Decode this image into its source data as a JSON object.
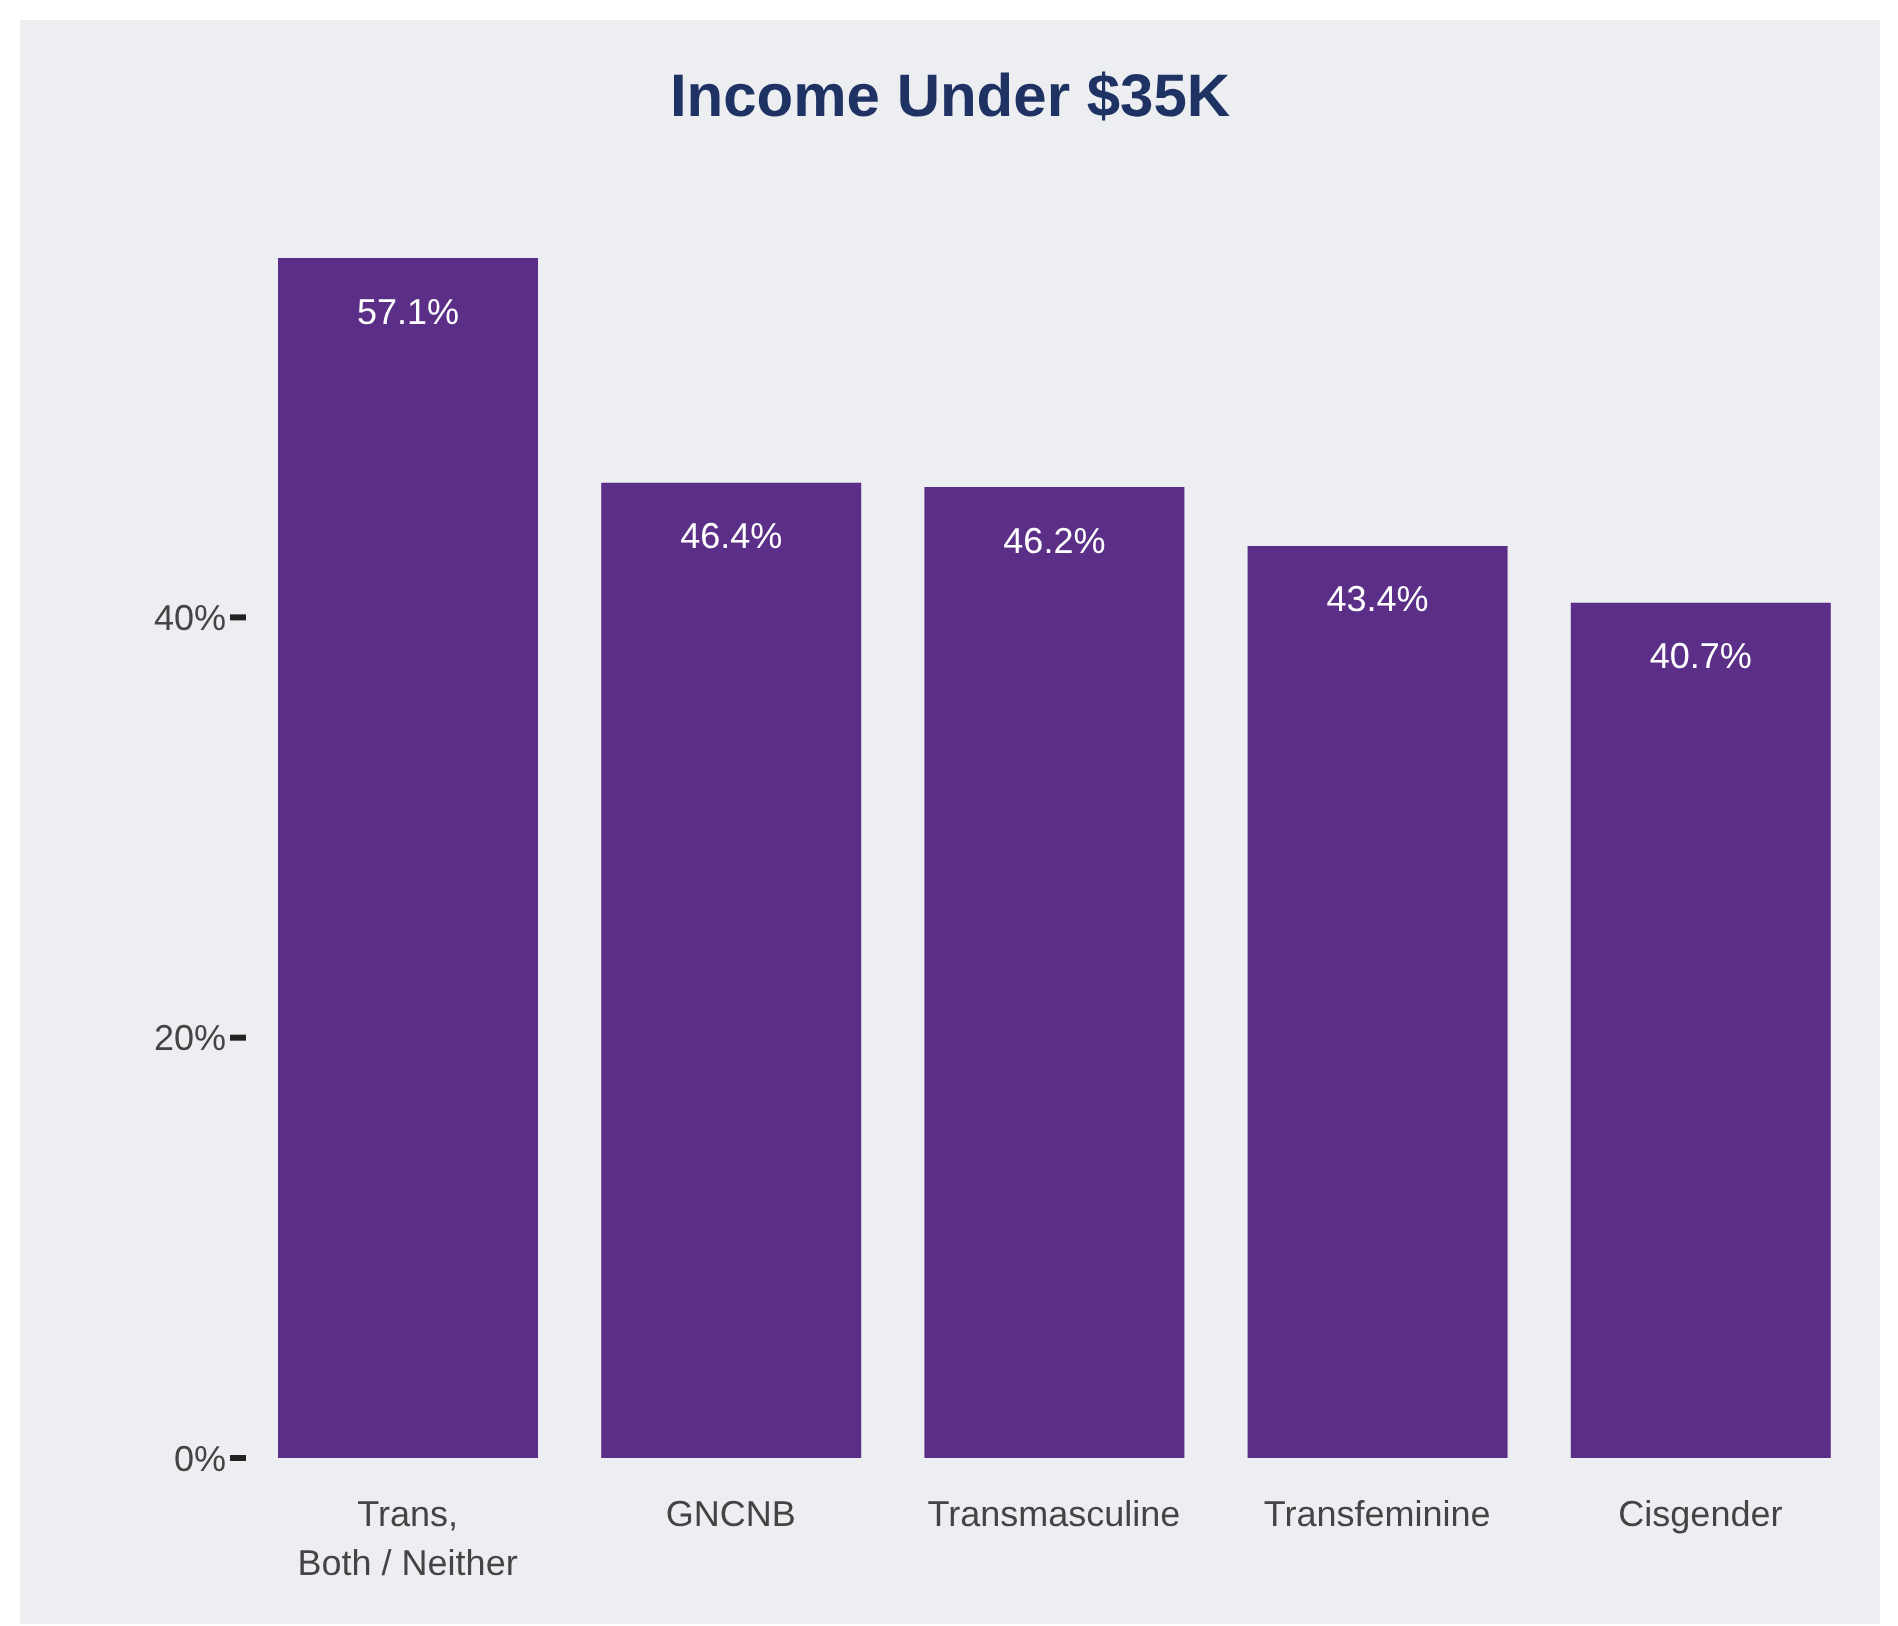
{
  "chart_data": {
    "type": "bar",
    "title": "Income Under $35K",
    "categories": [
      "Trans,\nBoth / Neither",
      "GNCNB",
      "Transmasculine",
      "Transfeminine",
      "Cisgender"
    ],
    "values": [
      57.1,
      46.4,
      46.2,
      43.4,
      40.7
    ],
    "color": "#5b2e87",
    "ylim": [
      0,
      57.1
    ],
    "yticks": [
      {
        "value": 0,
        "label": "0%"
      },
      {
        "value": 20,
        "label": "20%"
      },
      {
        "value": 40,
        "label": "40%"
      }
    ],
    "data_labels": true,
    "value_labels": [
      "57.1%",
      "46.4%",
      "46.2%",
      "43.4%",
      "40.7%"
    ],
    "grid": false,
    "legend": false
  }
}
